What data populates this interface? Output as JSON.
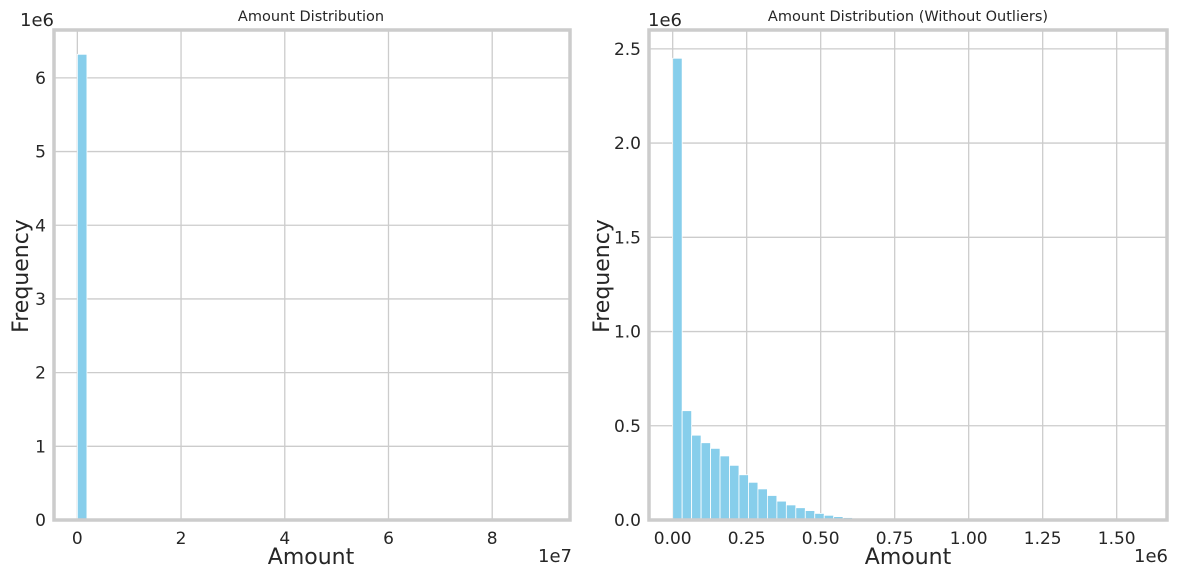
{
  "chart_data": [
    {
      "type": "bar",
      "title": "Amount Distribution",
      "xlabel": "Amount",
      "ylabel": "Frequency",
      "x_offset_label": "1e7",
      "y_offset_label": "1e6",
      "xlim": [
        -0.45,
        9.5
      ],
      "ylim": [
        0,
        6.65
      ],
      "xticks": [
        0,
        2,
        4,
        6,
        8
      ],
      "yticks": [
        0,
        1,
        2,
        3,
        4,
        5,
        6
      ],
      "xtick_labels": [
        "0",
        "2",
        "4",
        "6",
        "8"
      ],
      "ytick_labels": [
        "0",
        "1",
        "2",
        "3",
        "4",
        "5",
        "6"
      ],
      "grid": true,
      "bar_color": "#87ceeb",
      "bins": [
        {
          "x0": 0.0,
          "x1": 0.185,
          "value": 6.32
        }
      ]
    },
    {
      "type": "bar",
      "title": "Amount Distribution (Without Outliers)",
      "xlabel": "Amount",
      "ylabel": "Frequency",
      "x_offset_label": "1e6",
      "y_offset_label": "1e6",
      "xlim": [
        -0.08,
        1.67
      ],
      "ylim": [
        0,
        2.6
      ],
      "xticks": [
        0.0,
        0.25,
        0.5,
        0.75,
        1.0,
        1.25,
        1.5
      ],
      "yticks": [
        0.0,
        0.5,
        1.0,
        1.5,
        2.0,
        2.5
      ],
      "xtick_labels": [
        "0.00",
        "0.25",
        "0.50",
        "0.75",
        "1.00",
        "1.25",
        "1.50"
      ],
      "ytick_labels": [
        "0.0",
        "0.5",
        "1.0",
        "1.5",
        "2.0",
        "2.5"
      ],
      "grid": true,
      "bar_color": "#87ceeb",
      "bin_start": 0.0,
      "bin_width": 0.032,
      "values": [
        2.45,
        0.58,
        0.45,
        0.41,
        0.38,
        0.34,
        0.29,
        0.24,
        0.2,
        0.165,
        0.13,
        0.1,
        0.08,
        0.065,
        0.05,
        0.035,
        0.025,
        0.018,
        0.013,
        0.009,
        0.006,
        0.004,
        0.003,
        0.002,
        0.0015,
        0.001,
        0.0008,
        0.0006,
        0.0004,
        0.0003
      ]
    }
  ]
}
